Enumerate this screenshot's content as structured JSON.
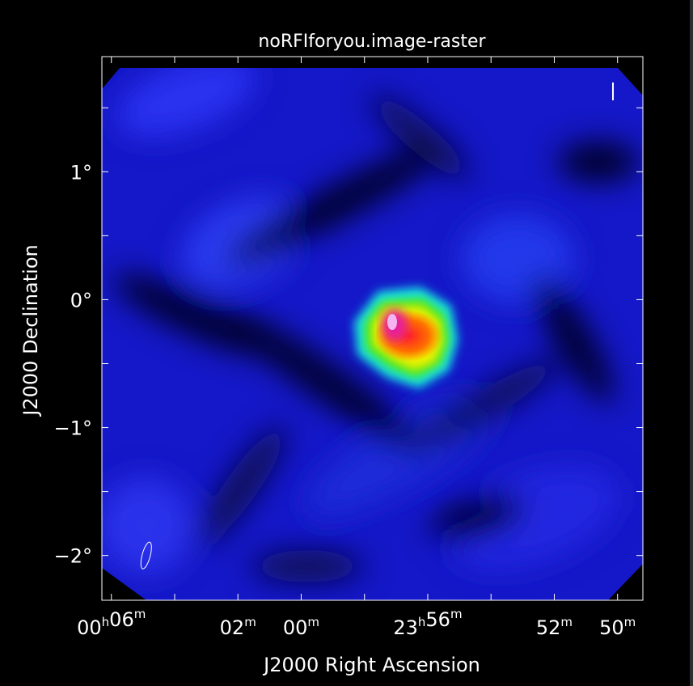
{
  "chart_data": {
    "type": "heatmap",
    "title": "noRFIforyou.image-raster",
    "xlabel": "J2000 Right Ascension",
    "ylabel": "J2000 Declination",
    "x_ticks": [
      {
        "h": "00",
        "hu": "h",
        "m": "06",
        "mu": "m",
        "ra_min": 6
      },
      {
        "h": "",
        "hu": "",
        "m": "02",
        "mu": "m",
        "ra_min": 2
      },
      {
        "h": "",
        "hu": "",
        "m": "00",
        "mu": "m",
        "ra_min": 0
      },
      {
        "h": "23",
        "hu": "h",
        "m": "56",
        "mu": "m",
        "ra_min": -4
      },
      {
        "h": "",
        "hu": "",
        "m": "52",
        "mu": "m",
        "ra_min": -8
      },
      {
        "h": "",
        "hu": "",
        "m": "50",
        "mu": "m",
        "ra_min": -10
      }
    ],
    "x_minor_ticks": [
      6,
      4,
      2,
      0,
      -2,
      -4,
      -6,
      -8,
      -10
    ],
    "xlim": [
      6.3,
      -10.8
    ],
    "y_ticks": [
      {
        "label": "1°",
        "dec": 1
      },
      {
        "label": "0°",
        "dec": 0
      },
      {
        "label": "−1°",
        "dec": -1
      },
      {
        "label": "−2°",
        "dec": -2
      }
    ],
    "y_minor_ticks": [
      1.5,
      1,
      0.5,
      0,
      -0.5,
      -1,
      -1.5,
      -2
    ],
    "ylim": [
      -2.35,
      1.9
    ],
    "source": {
      "ra_min": -3.4,
      "dec": -0.3
    },
    "beam": {
      "ra_min": 4.9,
      "dec": -2.0,
      "angle_deg": -55
    },
    "colormap": [
      "#000000",
      "#0a0a50",
      "#1a1ad6",
      "#1e6ee6",
      "#19e6e6",
      "#3ce61e",
      "#f0f000",
      "#ff6e00",
      "#ff1e28",
      "#e61e9b",
      "#ffffff"
    ],
    "grid": false
  }
}
